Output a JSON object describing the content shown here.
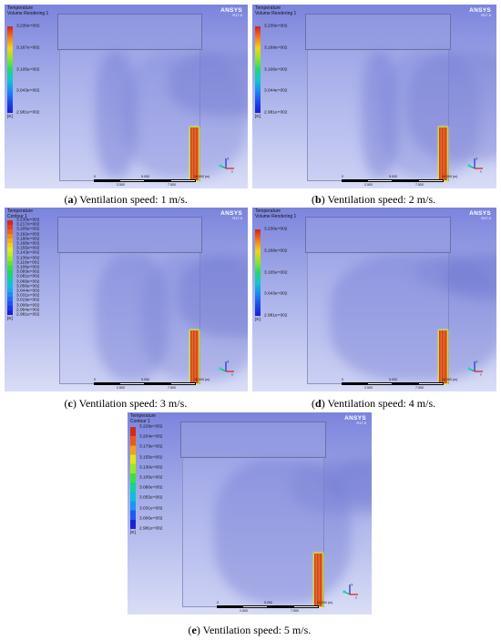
{
  "software": {
    "name": "ANSYS",
    "version": "R17.0"
  },
  "panels": [
    {
      "id": "a",
      "title_line1": "Temperature",
      "title_line2": "Volume Rendering 1",
      "legend_type": "continuous",
      "legend_labels": [
        "3.230e+002",
        "3.167e+002",
        "3.105e+002",
        "3.043e+002",
        "2.981e+002"
      ],
      "unit": "[K]",
      "caption_letter": "a",
      "caption_text": "Ventilation speed: 1 m/s."
    },
    {
      "id": "b",
      "title_line1": "Temperature",
      "title_line2": "Volume Rendering 1",
      "legend_type": "continuous",
      "legend_labels": [
        "3.230e+002",
        "3.168e+002",
        "3.106e+002",
        "3.044e+002",
        "2.981e+002"
      ],
      "unit": "[K]",
      "caption_letter": "b",
      "caption_text": "Ventilation speed: 2 m/s."
    },
    {
      "id": "c",
      "title_line1": "Temperature",
      "title_line2": "Contour 1",
      "legend_type": "discrete",
      "legend_labels": [
        "3.230e+002",
        "3.217e+002",
        "3.205e+002",
        "3.192e+002",
        "3.180e+002",
        "3.168e+002",
        "3.155e+002",
        "3.143e+002",
        "3.130e+002",
        "3.118e+002",
        "3.106e+002",
        "3.093e+002",
        "3.081e+002",
        "3.069e+002",
        "3.056e+002",
        "3.044e+002",
        "3.031e+002",
        "3.019e+002",
        "3.006e+002",
        "2.994e+002",
        "2.981e+002"
      ],
      "unit": "[K]",
      "caption_letter": "c",
      "caption_text": "Ventilation speed: 3 m/s."
    },
    {
      "id": "d",
      "title_line1": "Temperature",
      "title_line2": "Volume Rendering 1",
      "legend_type": "continuous",
      "legend_labels": [
        "3.230e+002",
        "3.168e+002",
        "3.105e+002",
        "3.043e+002",
        "2.981e+002"
      ],
      "unit": "[K]",
      "caption_letter": "d",
      "caption_text": "Ventilation speed: 4 m/s."
    },
    {
      "id": "e",
      "title_line1": "Temperature",
      "title_line2": "Contour 1",
      "legend_type": "discrete",
      "legend_labels": [
        "3.229e+002",
        "3.204e+002",
        "3.179e+002",
        "3.155e+002",
        "3.130e+002",
        "3.105e+002",
        "3.080e+002",
        "3.055e+002",
        "3.031e+002",
        "3.006e+002",
        "2.981e+002"
      ],
      "unit": "[K]",
      "caption_letter": "e",
      "caption_text": "Ventilation speed: 5 m/s."
    }
  ],
  "scale_bar": {
    "tick_top_left": "0",
    "tick_top_mid": "5.000",
    "tick_top_right": "10.000 (m)",
    "tick_bottom_left": "2.500",
    "tick_bottom_right": "7.500"
  },
  "axes": {
    "x": "x",
    "y": "y",
    "z": "z"
  },
  "colors": {
    "heater": "#d14418",
    "heater_outline": "#c6dc36",
    "background_top": "#7b84dc",
    "background_bottom": "#d9ddf6"
  }
}
